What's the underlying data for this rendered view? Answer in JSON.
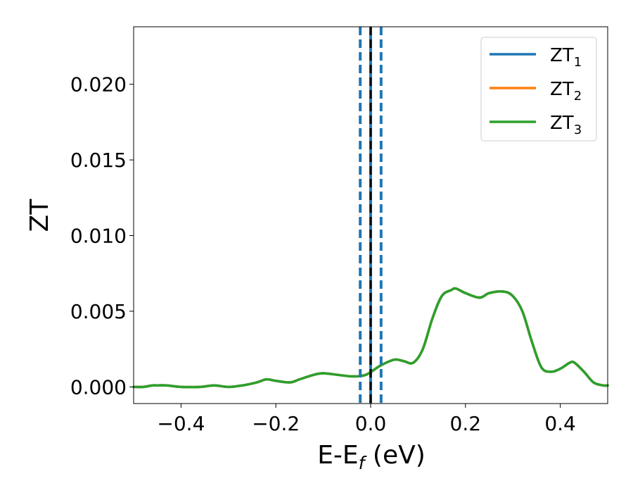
{
  "chart_data": {
    "type": "line",
    "title": "",
    "xlabel": "E-E",
    "xlabel_sub": "f",
    "xlabel_unit": " (eV)",
    "ylabel": "ZT",
    "xlim": [
      -0.5,
      0.5
    ],
    "ylim": [
      -0.0011,
      0.0238
    ],
    "xticks": [
      -0.4,
      -0.2,
      0.0,
      0.2,
      0.4
    ],
    "xtick_labels": [
      "−0.4",
      "−0.2",
      "0.0",
      "0.2",
      "0.4"
    ],
    "yticks": [
      0.0,
      0.005,
      0.01,
      0.015,
      0.02
    ],
    "ytick_labels": [
      "0.000",
      "0.005",
      "0.010",
      "0.015",
      "0.020"
    ],
    "grid": false,
    "legend_position": "top-right",
    "x": [
      -0.5,
      -0.48,
      -0.46,
      -0.45,
      -0.43,
      -0.4,
      -0.36,
      -0.33,
      -0.3,
      -0.27,
      -0.24,
      -0.22,
      -0.2,
      -0.17,
      -0.15,
      -0.12,
      -0.1,
      -0.07,
      -0.04,
      -0.01,
      0.02,
      0.05,
      0.07,
      0.09,
      0.11,
      0.13,
      0.15,
      0.17,
      0.18,
      0.2,
      0.23,
      0.25,
      0.28,
      0.3,
      0.32,
      0.34,
      0.36,
      0.38,
      0.4,
      0.42,
      0.43,
      0.45,
      0.47,
      0.49,
      0.5
    ],
    "series": [
      {
        "name": "ZT",
        "name_sub": "1",
        "color": "#1f77b4",
        "values": [
          0.0,
          0.0,
          0.0001,
          0.0001,
          0.0001,
          0.0,
          0.0,
          0.0001,
          0.0,
          0.0001,
          0.0003,
          0.0005,
          0.0004,
          0.0003,
          0.0005,
          0.0008,
          0.0009,
          0.0008,
          0.0007,
          0.0008,
          0.0014,
          0.0018,
          0.0017,
          0.0016,
          0.0025,
          0.0045,
          0.006,
          0.0064,
          0.0065,
          0.0062,
          0.0059,
          0.0062,
          0.0063,
          0.006,
          0.005,
          0.003,
          0.0013,
          0.001,
          0.0012,
          0.0016,
          0.0016,
          0.001,
          0.0003,
          0.0001,
          0.0001
        ]
      },
      {
        "name": "ZT",
        "name_sub": "2",
        "color": "#ff7f0e",
        "values": [
          0.0,
          0.0,
          0.0001,
          0.0001,
          0.0001,
          0.0,
          0.0,
          0.0001,
          0.0,
          0.0001,
          0.0003,
          0.0005,
          0.0004,
          0.0003,
          0.0005,
          0.0008,
          0.0009,
          0.0008,
          0.0007,
          0.0008,
          0.0014,
          0.0018,
          0.0017,
          0.0016,
          0.0025,
          0.0045,
          0.006,
          0.0064,
          0.0065,
          0.0062,
          0.0059,
          0.0062,
          0.0063,
          0.006,
          0.005,
          0.003,
          0.0013,
          0.001,
          0.0012,
          0.0016,
          0.0016,
          0.001,
          0.0003,
          0.0001,
          0.0001
        ]
      },
      {
        "name": "ZT",
        "name_sub": "3",
        "color": "#2ca02c",
        "values": [
          0.0,
          0.0,
          0.0001,
          0.0001,
          0.0001,
          0.0,
          0.0,
          0.0001,
          0.0,
          0.0001,
          0.0003,
          0.0005,
          0.0004,
          0.0003,
          0.0005,
          0.0008,
          0.0009,
          0.0008,
          0.0007,
          0.0008,
          0.0014,
          0.0018,
          0.0017,
          0.0016,
          0.0025,
          0.0045,
          0.006,
          0.0064,
          0.0065,
          0.0062,
          0.0059,
          0.0062,
          0.0063,
          0.006,
          0.005,
          0.003,
          0.0013,
          0.001,
          0.0012,
          0.0016,
          0.0016,
          0.001,
          0.0003,
          0.0001,
          0.0001
        ]
      }
    ],
    "vlines": [
      {
        "x": -0.022,
        "style": "dashed",
        "color": "#1f77b4"
      },
      {
        "x": 0.0,
        "style": "solid",
        "color": "#1f77b4"
      },
      {
        "x": 0.022,
        "style": "dashed",
        "color": "#1f77b4"
      },
      {
        "x": 0.0,
        "style": "dashed",
        "color": "#000000"
      }
    ]
  }
}
